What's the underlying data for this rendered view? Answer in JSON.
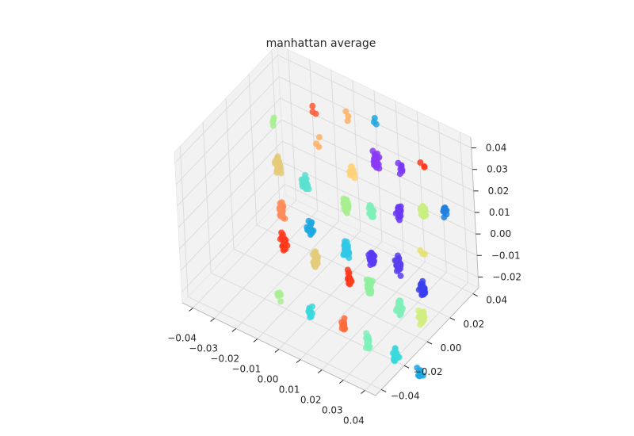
{
  "chart_data": {
    "type": "scatter",
    "projection": "3d",
    "title": "manhattan average",
    "xlabel": "",
    "ylabel": "",
    "zlabel": "",
    "x_ticks": [
      "−0.04",
      "−0.03",
      "−0.02",
      "−0.01",
      "0.00",
      "0.01",
      "0.02",
      "0.03",
      "0.04"
    ],
    "y_ticks": [
      "−0.04",
      "−0.02",
      "0.00",
      "0.02",
      "0.04"
    ],
    "z_ticks": [
      "0.04",
      "0.03",
      "0.02",
      "0.01",
      "0.00",
      "−0.01",
      "−0.02"
    ],
    "xlim": [
      -0.045,
      0.045
    ],
    "ylim": [
      -0.045,
      0.045
    ],
    "zlim": [
      -0.025,
      0.045
    ],
    "grid": true,
    "colormap": "rainbow",
    "panes_color": "#f2f2f2",
    "clusters": [
      {
        "x": -0.035,
        "y": 0.02,
        "z": 0.028,
        "color": "#a8ee90",
        "n": 4
      },
      {
        "x": -0.032,
        "y": 0.018,
        "z": 0.01,
        "color": "#e4cb7a",
        "n": 30
      },
      {
        "x": -0.03,
        "y": 0.015,
        "z": -0.008,
        "color": "#ff8c5a",
        "n": 30
      },
      {
        "x": -0.028,
        "y": 0.012,
        "z": -0.02,
        "color": "#ff3a1d",
        "n": 30
      },
      {
        "x": -0.03,
        "y": 0.01,
        "z": -0.045,
        "color": "#a8ee90",
        "n": 8
      },
      {
        "x": -0.02,
        "y": 0.03,
        "z": 0.035,
        "color": "#ff5a34",
        "n": 3
      },
      {
        "x": -0.018,
        "y": 0.028,
        "z": 0.022,
        "color": "#ffb060",
        "n": 3
      },
      {
        "x": -0.018,
        "y": 0.015,
        "z": 0.01,
        "color": "#5ae0d0",
        "n": 25
      },
      {
        "x": -0.015,
        "y": 0.012,
        "z": -0.008,
        "color": "#1ea8e0",
        "n": 30
      },
      {
        "x": -0.012,
        "y": 0.01,
        "z": -0.02,
        "color": "#e4cb7a",
        "n": 30
      },
      {
        "x": -0.015,
        "y": 0.008,
        "z": -0.045,
        "color": "#3ad8dd",
        "n": 12
      },
      {
        "x": -0.005,
        "y": 0.03,
        "z": 0.04,
        "color": "#ffb060",
        "n": 3
      },
      {
        "x": -0.003,
        "y": 0.028,
        "z": 0.015,
        "color": "#ffd27a",
        "n": 15
      },
      {
        "x": -0.002,
        "y": 0.02,
        "z": 0.005,
        "color": "#a8ee90",
        "n": 30
      },
      {
        "x": 0.0,
        "y": 0.015,
        "z": -0.012,
        "color": "#30c8e8",
        "n": 35
      },
      {
        "x": 0.002,
        "y": 0.012,
        "z": -0.022,
        "color": "#ff3a1d",
        "n": 15
      },
      {
        "x": 0.0,
        "y": 0.01,
        "z": -0.045,
        "color": "#ff6a3a",
        "n": 10
      },
      {
        "x": 0.005,
        "y": 0.035,
        "z": 0.04,
        "color": "#1ea8e0",
        "n": 3
      },
      {
        "x": 0.008,
        "y": 0.03,
        "z": 0.025,
        "color": "#8a3af5",
        "n": 20
      },
      {
        "x": 0.01,
        "y": 0.02,
        "z": 0.008,
        "color": "#7ff0b8",
        "n": 20
      },
      {
        "x": 0.012,
        "y": 0.015,
        "z": -0.01,
        "color": "#5a3af5",
        "n": 40
      },
      {
        "x": 0.012,
        "y": 0.012,
        "z": -0.022,
        "color": "#8ff0a0",
        "n": 40
      },
      {
        "x": 0.012,
        "y": 0.008,
        "z": -0.045,
        "color": "#7ff0b8",
        "n": 20
      },
      {
        "x": 0.02,
        "y": 0.03,
        "z": 0.028,
        "color": "#7a3af5",
        "n": 8
      },
      {
        "x": 0.022,
        "y": 0.022,
        "z": 0.012,
        "color": "#6a3af5",
        "n": 25
      },
      {
        "x": 0.024,
        "y": 0.016,
        "z": -0.008,
        "color": "#5a40f0",
        "n": 40
      },
      {
        "x": 0.026,
        "y": 0.012,
        "z": -0.025,
        "color": "#7ff0b8",
        "n": 20
      },
      {
        "x": 0.025,
        "y": 0.008,
        "z": -0.045,
        "color": "#3ad8dd",
        "n": 20
      },
      {
        "x": 0.03,
        "y": 0.03,
        "z": 0.035,
        "color": "#ff3a1d",
        "n": 3
      },
      {
        "x": 0.032,
        "y": 0.025,
        "z": 0.015,
        "color": "#c8ef80",
        "n": 20
      },
      {
        "x": 0.034,
        "y": 0.02,
        "z": 0.0,
        "color": "#e8e070",
        "n": 3
      },
      {
        "x": 0.035,
        "y": 0.016,
        "z": -0.015,
        "color": "#3a40f0",
        "n": 35
      },
      {
        "x": 0.036,
        "y": 0.012,
        "z": -0.025,
        "color": "#d0ee80",
        "n": 25
      },
      {
        "x": 0.036,
        "y": 0.008,
        "z": -0.048,
        "color": "#1ea8e0",
        "n": 8
      },
      {
        "x": 0.042,
        "y": 0.025,
        "z": 0.02,
        "color": "#1e80e0",
        "n": 10
      }
    ]
  }
}
